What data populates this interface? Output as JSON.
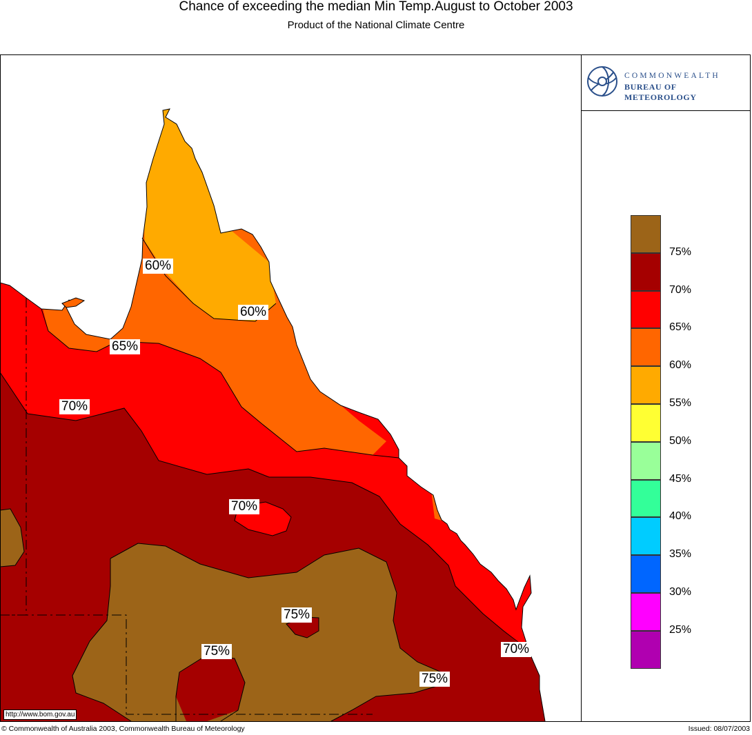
{
  "header": {
    "title": "Chance of exceeding the median Min Temp.August to October 2003",
    "subtitle": "Product of the National Climate Centre"
  },
  "logo": {
    "line1": "COMMONWEALTH",
    "line2": "BUREAU OF METEOROLOGY",
    "icon": "swirl-icon"
  },
  "legend": {
    "colors": [
      "#9c6418",
      "#a50000",
      "#ff0000",
      "#ff6600",
      "#ffaa00",
      "#ffff33",
      "#99ff99",
      "#33ff99",
      "#00ccff",
      "#0066ff",
      "#ff00ff",
      "#b000b0"
    ],
    "labels": [
      "75%",
      "70%",
      "65%",
      "60%",
      "55%",
      "50%",
      "45%",
      "40%",
      "35%",
      "30%",
      "25%"
    ]
  },
  "map": {
    "contour_labels": [
      "60%",
      "60%",
      "65%",
      "70%",
      "70%",
      "75%",
      "75%",
      "70%",
      "75%"
    ],
    "url": "http://www.bom.gov.au"
  },
  "footer": {
    "copyright": "© Commonwealth of Australia 2003, Commonwealth Bureau of Meteorology",
    "issued": "Issued: 08/07/2003"
  }
}
